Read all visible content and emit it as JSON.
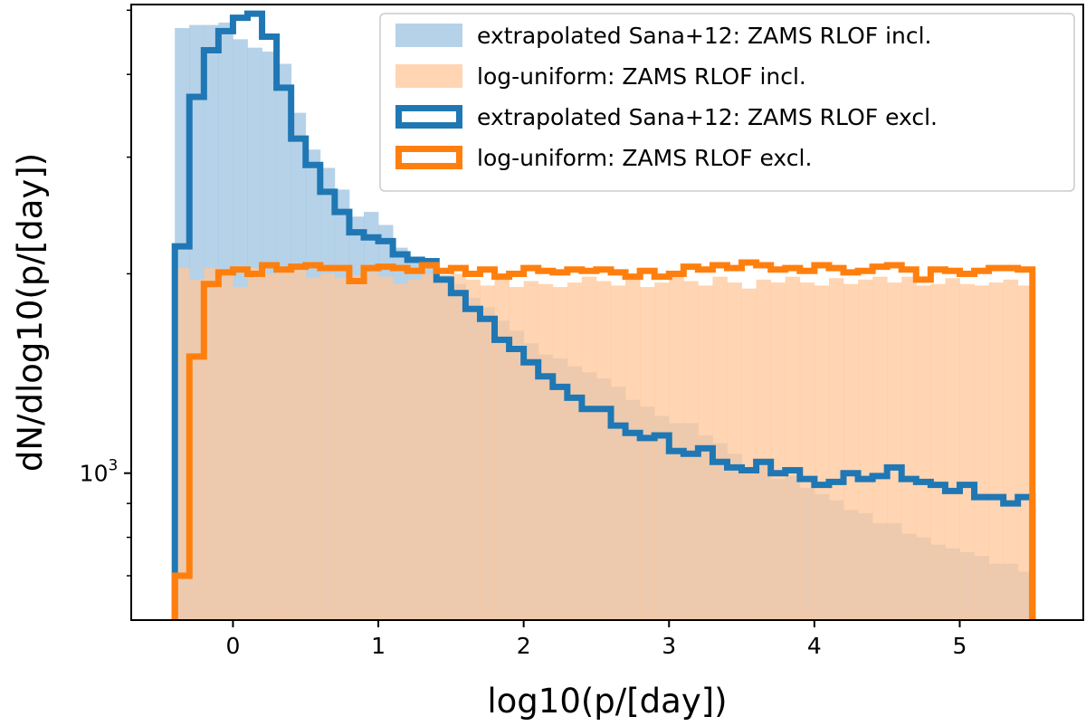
{
  "chart_data": {
    "type": "histogram",
    "title": "",
    "xlabel": "log10(p/[day])",
    "ylabel": "dN/dlog10(p/[day])",
    "xlim": [
      -0.7,
      5.85
    ],
    "ylim": [
      600,
      5100
    ],
    "yscale": "log",
    "bin_start": -0.4,
    "bin_width": 0.1,
    "x_ticks": [
      0,
      1,
      2,
      3,
      4,
      5
    ],
    "x_tick_labels": [
      "0",
      "1",
      "2",
      "3",
      "4",
      "5"
    ],
    "y_major_ticks": [
      1000
    ],
    "y_major_tick_labels": [
      "10",
      "3"
    ],
    "y_minor_ticks": [
      700,
      800,
      900,
      2000,
      3000,
      4000,
      5000
    ],
    "legend_position": "top-right",
    "series": [
      {
        "name": "extrapolated Sana+12: ZAMS RLOF incl.",
        "style": "filled",
        "color": "#9ec3e0",
        "values": [
          4700,
          4750,
          4750,
          4790,
          4520,
          4390,
          4330,
          4150,
          3500,
          3080,
          2890,
          2680,
          2440,
          2480,
          2370,
          2190,
          2100,
          2040,
          1990,
          1930,
          1840,
          1780,
          1700,
          1640,
          1570,
          1510,
          1490,
          1450,
          1420,
          1390,
          1350,
          1290,
          1260,
          1220,
          1190,
          1190,
          1140,
          1110,
          1070,
          1020,
          1050,
          980,
          990,
          950,
          930,
          910,
          880,
          870,
          840,
          840,
          810,
          800,
          780,
          770,
          760,
          750,
          730,
          730,
          710
        ]
      },
      {
        "name": "log-uniform: ZAMS RLOF incl.",
        "style": "filled",
        "color": "#ffc799",
        "values": [
          2040,
          1960,
          2040,
          2030,
          1910,
          2040,
          2000,
          2010,
          2040,
          1970,
          2000,
          1970,
          1990,
          2010,
          1980,
          1930,
          1960,
          2000,
          1950,
          2000,
          1960,
          1920,
          1970,
          1910,
          1950,
          1930,
          1910,
          1940,
          1980,
          1950,
          1920,
          1970,
          1910,
          1940,
          1980,
          1950,
          1920,
          1980,
          1940,
          1900,
          1960,
          1940,
          1980,
          1940,
          1920,
          1970,
          1930,
          1960,
          1980,
          1940,
          1980,
          1920,
          1930,
          1970,
          1930,
          1920,
          1940,
          1960,
          1920
        ]
      },
      {
        "name": "extrapolated Sana+12: ZAMS RLOF excl.",
        "style": "step",
        "color": "#1f77b4",
        "values": [
          2200,
          3700,
          4350,
          4650,
          4870,
          4940,
          4560,
          3820,
          3200,
          2920,
          2660,
          2480,
          2310,
          2270,
          2240,
          2140,
          2100,
          2090,
          1960,
          1870,
          1770,
          1710,
          1590,
          1540,
          1470,
          1400,
          1350,
          1300,
          1250,
          1250,
          1180,
          1150,
          1130,
          1140,
          1080,
          1070,
          1090,
          1040,
          1020,
          1010,
          1040,
          1000,
          1010,
          980,
          960,
          970,
          1000,
          980,
          990,
          1020,
          980,
          970,
          960,
          940,
          960,
          920,
          920,
          900,
          920
        ]
      },
      {
        "name": "log-uniform: ZAMS RLOF excl.",
        "style": "step",
        "color": "#ff7f0e",
        "values": [
          700,
          1500,
          1930,
          2010,
          2030,
          2000,
          2060,
          2030,
          2050,
          2060,
          2040,
          2040,
          1950,
          2040,
          2050,
          2040,
          2020,
          2060,
          2020,
          2040,
          2000,
          2030,
          1980,
          2000,
          2040,
          2020,
          2010,
          2030,
          2020,
          2030,
          2010,
          1980,
          2020,
          1980,
          2000,
          2050,
          2030,
          2060,
          2040,
          2080,
          2060,
          2030,
          2040,
          2020,
          2060,
          2040,
          2010,
          2020,
          2050,
          2060,
          2030,
          1960,
          2030,
          2020,
          2000,
          2020,
          2040,
          2040,
          2030
        ]
      }
    ]
  }
}
